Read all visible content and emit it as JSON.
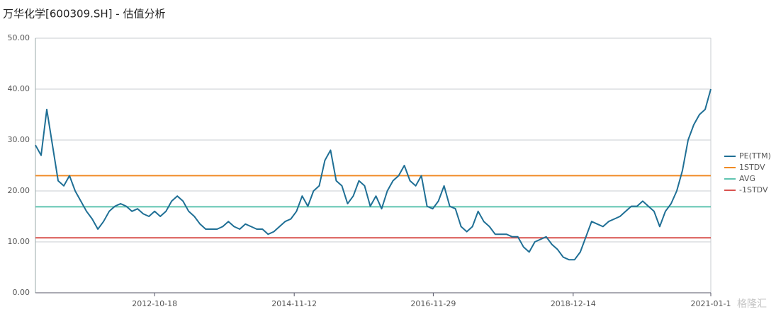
{
  "chart_data": {
    "type": "line",
    "title": "万华化学[600309.SH] - 估值分析",
    "series": [
      {
        "name": "PE(TTM)",
        "color": "#1f6f95",
        "values": [
          29,
          27,
          36,
          29,
          22,
          21,
          23,
          20,
          18,
          16,
          14.5,
          12.5,
          14,
          16,
          17,
          17.5,
          17,
          16,
          16.5,
          15.5,
          15,
          16,
          15,
          16,
          18,
          19,
          18,
          16,
          15,
          13.5,
          12.5,
          12.5,
          12.5,
          13,
          14,
          13,
          12.5,
          13.5,
          13,
          12.5,
          12.5,
          11.5,
          12,
          13,
          14,
          14.5,
          16,
          19,
          17,
          20,
          21,
          26,
          28,
          22,
          21,
          17.5,
          19,
          22,
          21,
          17,
          19,
          16.5,
          20,
          22,
          23,
          25,
          22,
          21,
          23,
          17,
          16.5,
          18,
          21,
          17,
          16.5,
          13,
          12,
          13,
          16,
          14,
          13,
          11.5,
          11.5,
          11.5,
          11,
          11,
          9,
          8,
          10,
          10.5,
          11,
          9.5,
          8.5,
          7,
          6.5,
          6.5,
          8,
          11,
          14,
          13.5,
          13,
          14,
          14.5,
          15,
          16,
          17,
          17,
          18,
          17,
          16,
          13,
          16,
          17.5,
          20,
          24,
          30,
          33,
          35,
          36,
          40
        ]
      }
    ],
    "reference_lines": [
      {
        "name": "1STDV",
        "color": "#f08a24",
        "value": 23.0
      },
      {
        "name": "AVG",
        "color": "#5fc4b0",
        "value": 16.9
      },
      {
        "name": "-1STDV",
        "color": "#d9534f",
        "value": 10.8
      }
    ],
    "xlim": [
      0,
      119
    ],
    "xticks": [
      {
        "value": 21,
        "label": "2012-10-18"
      },
      {
        "value": 45.6,
        "label": "2014-11-12"
      },
      {
        "value": 70.1,
        "label": "2016-11-29"
      },
      {
        "value": 94.75,
        "label": "2018-12-14"
      },
      {
        "value": 119,
        "label": "2021-01-1"
      }
    ],
    "ylim": [
      0,
      50
    ],
    "yticks": [
      {
        "value": 0,
        "label": "0.00"
      },
      {
        "value": 10,
        "label": "10.00"
      },
      {
        "value": 20,
        "label": "20.00"
      },
      {
        "value": 30,
        "label": "30.00"
      },
      {
        "value": 40,
        "label": "40.00"
      },
      {
        "value": 50,
        "label": "50.00"
      }
    ],
    "grid": true,
    "legend": "right",
    "watermark": "格隆汇"
  }
}
